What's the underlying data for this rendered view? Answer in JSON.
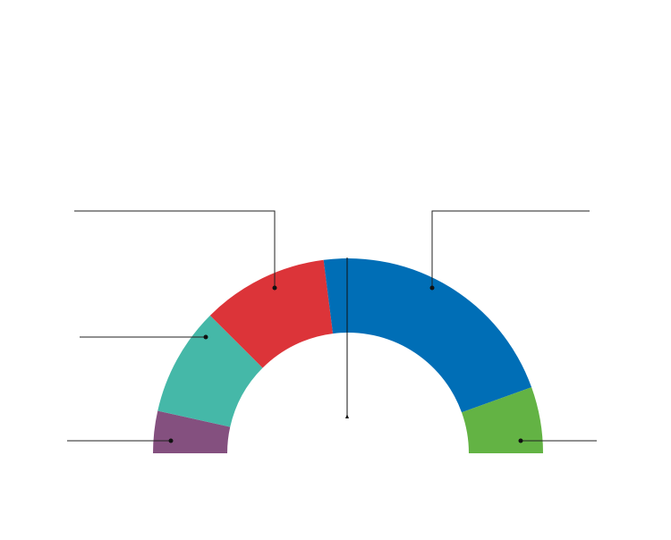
{
  "chart_data": {
    "type": "semidonut",
    "values": [
      7,
      18,
      21,
      43,
      11
    ],
    "colors": [
      "#84507f",
      "#45b8a8",
      "#dc3439",
      "#006eb6",
      "#63b344"
    ]
  }
}
